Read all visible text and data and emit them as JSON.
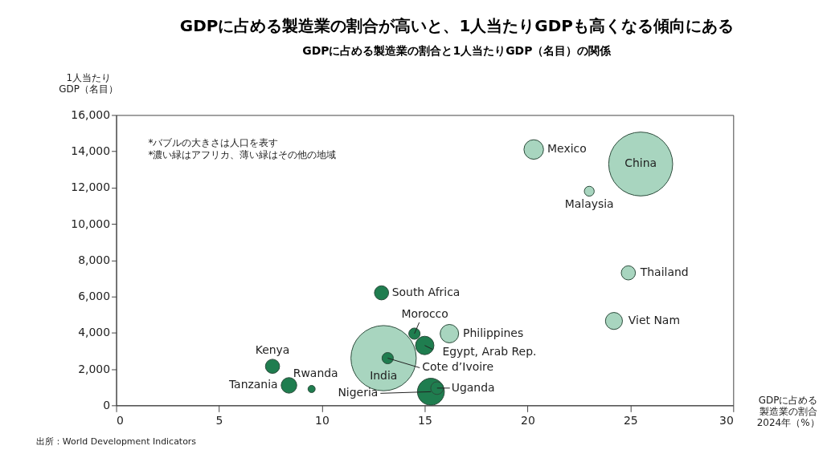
{
  "chart_data": {
    "type": "bubble",
    "title": "GDPに占める製造業の割合が高いと、1人当たりGDPも高くなる傾向にある",
    "subtitle": "GDPに占める製造業の割合と1人当たりGDP（名目）の関係",
    "xlabel": "GDPに占める製造業の割合2024年（%）",
    "ylabel": "1人当たりGDP（名目）",
    "x": [
      20.3,
      25.5,
      23.0,
      24.9,
      24.2,
      12.9,
      14.5,
      16.2,
      15.0,
      13.0,
      13.2,
      7.6,
      8.4,
      9.5,
      15.3,
      15.6
    ],
    "values": [
      14100,
      13300,
      11800,
      7300,
      4650,
      6200,
      3950,
      3950,
      3300,
      2600,
      2600,
      2150,
      1100,
      900,
      750,
      950
    ],
    "sizes": [
      0.09,
      0.96,
      0.023,
      0.047,
      0.068,
      0.047,
      0.03,
      0.08,
      0.08,
      1,
      0.03,
      0.047,
      0.057,
      0.012,
      0.17,
      0.038
    ],
    "colors": [
      "#a8d5bf",
      "#a8d5bf",
      "#a8d5bf",
      "#a8d5bf",
      "#a8d5bf",
      "#1f7d4f",
      "#1f7d4f",
      "#a8d5bf",
      "#1f7d4f",
      "#a8d5bf",
      "#1f7d4f",
      "#1f7d4f",
      "#1f7d4f",
      "#1f7d4f",
      "#1f7d4f",
      "#1f7d4f"
    ],
    "xlim": [
      0,
      30
    ],
    "xticks": [
      0,
      5,
      10,
      15,
      20,
      25,
      30
    ],
    "ylim": [
      0,
      16000
    ],
    "yticks": [
      {
        "value": 0,
        "label": "0"
      },
      {
        "value": 2000,
        "label": "2,000"
      },
      {
        "value": 4000,
        "label": "4,000"
      },
      {
        "value": 6000,
        "label": "6,000"
      },
      {
        "value": 8000,
        "label": "8,000"
      },
      {
        "value": 10000,
        "label": "10,000"
      },
      {
        "value": 12000,
        "label": "12,000"
      },
      {
        "value": 14000,
        "label": "14,000"
      },
      {
        "value": 16000,
        "label": "16,000"
      }
    ],
    "grid": false,
    "annotations": [
      {
        "text": "Mexico",
        "x": 20.3,
        "y": 14100
      },
      {
        "text": "China",
        "x": 25.5,
        "y": 13300
      },
      {
        "text": "Malaysia",
        "x": 23.0,
        "y": 11800
      },
      {
        "text": "Thailand",
        "x": 24.9,
        "y": 7300
      },
      {
        "text": "Viet Nam",
        "x": 24.2,
        "y": 4650
      },
      {
        "text": "South Africa",
        "x": 12.9,
        "y": 6200
      },
      {
        "text": "Morocco",
        "x": 14.5,
        "y": 3950
      },
      {
        "text": "Philippines",
        "x": 16.2,
        "y": 3950
      },
      {
        "text": "Egypt, Arab Rep.",
        "x": 15.0,
        "y": 3300
      },
      {
        "text": "India",
        "x": 13.0,
        "y": 2600
      },
      {
        "text": "Cote d’Ivoire",
        "x": 13.2,
        "y": 2600
      },
      {
        "text": "Kenya",
        "x": 7.6,
        "y": 2150
      },
      {
        "text": "Tanzania",
        "x": 8.4,
        "y": 1100
      },
      {
        "text": "Rwanda",
        "x": 9.5,
        "y": 900
      },
      {
        "text": "Nigeria",
        "x": 15.3,
        "y": 750
      },
      {
        "text": "Uganda",
        "x": 15.6,
        "y": 950
      },
      "*バブルの大きさは人口を表す",
      "*濃い緑はアフリカ、薄い緑はその他の地域",
      "出所：World Development Indicators"
    ]
  }
}
